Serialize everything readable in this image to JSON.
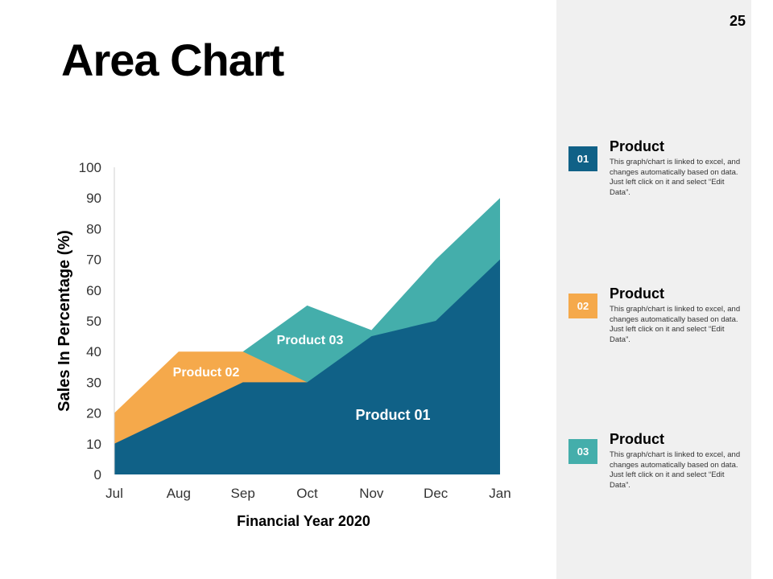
{
  "slide": {
    "title": "Area Chart",
    "page_number": "25"
  },
  "chart_data": {
    "type": "area",
    "stacked": false,
    "categories": [
      "Jul",
      "Aug",
      "Sep",
      "Oct",
      "Nov",
      "Dec",
      "Jan"
    ],
    "series": [
      {
        "name": "Product 03",
        "values": [
          null,
          null,
          40,
          55,
          47,
          70,
          90
        ],
        "color": "#44aeab"
      },
      {
        "name": "Product 02",
        "values": [
          20,
          40,
          40,
          30,
          null,
          null,
          null
        ],
        "color": "#f5a94b"
      },
      {
        "name": "Product 01",
        "values": [
          10,
          20,
          30,
          30,
          45,
          50,
          70
        ],
        "color": "#106187"
      }
    ],
    "xlabel": "Financial Year 2020",
    "ylabel": "Sales In Percentage (%)",
    "ylim": [
      0,
      100
    ],
    "yticks": [
      0,
      10,
      20,
      30,
      40,
      50,
      60,
      70,
      80,
      90,
      100
    ],
    "grid": false
  },
  "legend": {
    "items": [
      {
        "number": "01",
        "color": "#106187",
        "title": "Product",
        "text": "This graph/chart is linked to excel, and changes automatically based on data. Just left click on it and select “Edit Data”."
      },
      {
        "number": "02",
        "color": "#f5a94b",
        "title": "Product",
        "text": "This graph/chart is linked to excel, and changes automatically based on data. Just left click on it and select “Edit Data”."
      },
      {
        "number": "03",
        "color": "#44aeab",
        "title": "Product",
        "text": "This graph/chart is linked to excel, and changes automatically based on data. Just left click on it and select “Edit Data”."
      }
    ]
  }
}
